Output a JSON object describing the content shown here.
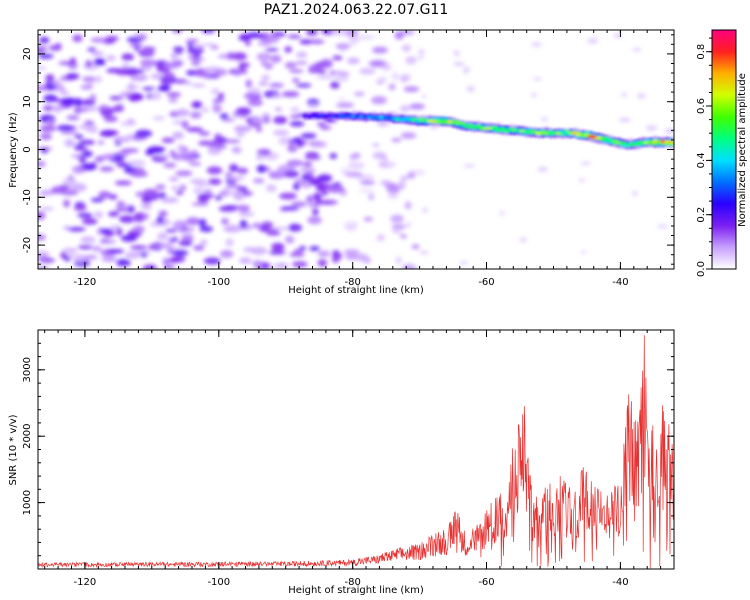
{
  "figure": {
    "title": "PAZ1.2024.063.22.07.G11"
  },
  "chart_data": [
    {
      "type": "heatmap",
      "xlabel": "Height of straight line (km)",
      "ylabel": "Frequency (Hz)",
      "xlim": [
        -127,
        -32
      ],
      "ylim": [
        -25,
        25
      ],
      "xticks": [
        -120,
        -100,
        -80,
        -60,
        -40
      ],
      "yticks": [
        -20,
        -10,
        0,
        10,
        20
      ],
      "colorbar": {
        "label": "Normalized spectral amplitude",
        "range": [
          0,
          0.88
        ],
        "ticks": [
          0.0,
          0.2,
          0.4,
          0.6,
          0.8
        ],
        "colors": [
          "#ffffff",
          "#c8a0ff",
          "#7a1ff0",
          "#2a00ff",
          "#0070ff",
          "#00e0ff",
          "#00ff80",
          "#40ff00",
          "#d0ff00",
          "#ffb000",
          "#ff2020",
          "#ff0080"
        ]
      },
      "noise_region": {
        "x": [
          -127,
          -75
        ],
        "y": [
          -25,
          25
        ],
        "amplitude": [
          0.05,
          0.2
        ]
      },
      "signal_track": [
        {
          "x": -87,
          "y": 7.0,
          "amp": 0.25
        },
        {
          "x": -80,
          "y": 7.0,
          "amp": 0.32
        },
        {
          "x": -74,
          "y": 6.5,
          "amp": 0.4
        },
        {
          "x": -70,
          "y": 6.0,
          "amp": 0.55
        },
        {
          "x": -66,
          "y": 6.0,
          "amp": 0.7
        },
        {
          "x": -63,
          "y": 5.0,
          "amp": 0.55
        },
        {
          "x": -60,
          "y": 4.5,
          "amp": 0.6
        },
        {
          "x": -56,
          "y": 4.0,
          "amp": 0.55
        },
        {
          "x": -52,
          "y": 3.5,
          "amp": 0.6
        },
        {
          "x": -48,
          "y": 3.5,
          "amp": 0.55
        },
        {
          "x": -45,
          "y": 3.0,
          "amp": 0.8
        },
        {
          "x": -42,
          "y": 2.0,
          "amp": 0.6
        },
        {
          "x": -39,
          "y": 1.0,
          "amp": 0.55
        },
        {
          "x": -36,
          "y": 1.5,
          "amp": 0.6
        },
        {
          "x": -33,
          "y": 1.5,
          "amp": 0.85
        }
      ]
    },
    {
      "type": "line",
      "xlabel": "Height of straight line (km)",
      "ylabel": "SNR (10 * v/v)",
      "xlim": [
        -127,
        -32
      ],
      "ylim": [
        0,
        3600
      ],
      "xticks": [
        -120,
        -100,
        -80,
        -60,
        -40
      ],
      "yticks": [
        1000,
        2000,
        3000
      ],
      "line_color": "#e83030",
      "series": [
        {
          "x": [
            -127,
            -110,
            -90,
            -80,
            -76,
            -73,
            -70,
            -68,
            -66,
            -64.5,
            -63,
            -61,
            -59,
            -57,
            -56,
            -54.5,
            -53,
            -51,
            -49,
            -47,
            -45.5,
            -44,
            -42,
            -40,
            -38.5,
            -37.5,
            -36.5,
            -35.5,
            -34.5,
            -33.5,
            -32
          ],
          "y": [
            90,
            100,
            110,
            140,
            220,
            320,
            380,
            520,
            600,
            900,
            520,
            700,
            1050,
            1200,
            1900,
            2600,
            1050,
            1250,
            1400,
            1150,
            1550,
            1250,
            1100,
            1350,
            2900,
            2200,
            3600,
            2300,
            2000,
            2600,
            1750
          ]
        }
      ]
    }
  ]
}
